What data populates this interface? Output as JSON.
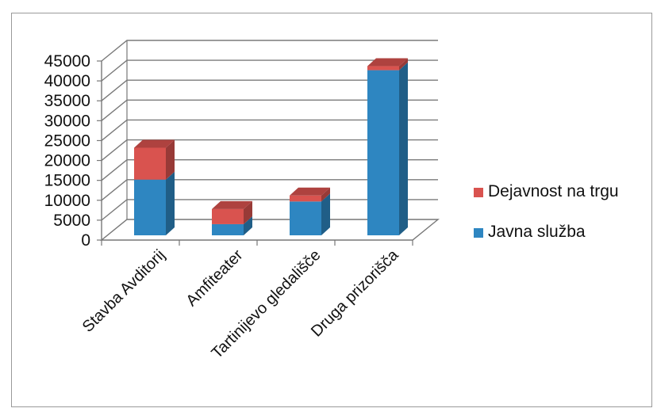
{
  "chart_data": {
    "type": "bar",
    "stacked": true,
    "three_d": true,
    "categories": [
      "Stavba Avditorij",
      "Amfiteater",
      "Tartinijevo gledališče",
      "Druga prizorišča"
    ],
    "series": [
      {
        "name": "Javna služba",
        "values": [
          14000,
          2800,
          8500,
          41500
        ],
        "color": "#2E86C1"
      },
      {
        "name": "Dejavnost na trgu",
        "values": [
          8000,
          3800,
          1500,
          1000
        ],
        "color": "#D9534F"
      }
    ],
    "yticks": [
      "0",
      "5000",
      "10000",
      "15000",
      "20000",
      "25000",
      "30000",
      "35000",
      "40000",
      "45000"
    ],
    "ylim": [
      0,
      45000
    ],
    "grid": true,
    "legend_position": "right"
  }
}
